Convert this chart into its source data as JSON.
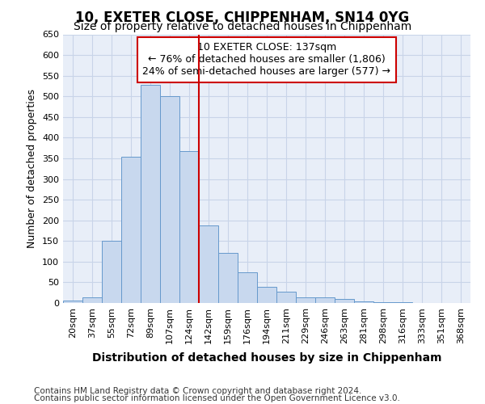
{
  "title": "10, EXETER CLOSE, CHIPPENHAM, SN14 0YG",
  "subtitle": "Size of property relative to detached houses in Chippenham",
  "xlabel": "Distribution of detached houses by size in Chippenham",
  "ylabel": "Number of detached properties",
  "categories": [
    "20sqm",
    "37sqm",
    "55sqm",
    "72sqm",
    "89sqm",
    "107sqm",
    "124sqm",
    "142sqm",
    "159sqm",
    "176sqm",
    "194sqm",
    "211sqm",
    "229sqm",
    "246sqm",
    "263sqm",
    "281sqm",
    "298sqm",
    "316sqm",
    "333sqm",
    "351sqm",
    "368sqm"
  ],
  "values": [
    5,
    13,
    150,
    353,
    528,
    501,
    367,
    188,
    122,
    75,
    40,
    27,
    13,
    13,
    10,
    3,
    1,
    1,
    0,
    0,
    0
  ],
  "bar_color": "#c8d8ee",
  "bar_edge_color": "#6699cc",
  "vline_x": 7.0,
  "annotation_text_line1": "10 EXETER CLOSE: 137sqm",
  "annotation_text_line2": "← 76% of detached houses are smaller (1,806)",
  "annotation_text_line3": "24% of semi-detached houses are larger (577) →",
  "annotation_box_color": "#ffffff",
  "annotation_box_edge_color": "#cc0000",
  "vline_color": "#cc0000",
  "grid_color": "#c8d4e8",
  "background_color": "#e8eef8",
  "ylim": [
    0,
    650
  ],
  "yticks": [
    0,
    50,
    100,
    150,
    200,
    250,
    300,
    350,
    400,
    450,
    500,
    550,
    600,
    650
  ],
  "footer_line1": "Contains HM Land Registry data © Crown copyright and database right 2024.",
  "footer_line2": "Contains public sector information licensed under the Open Government Licence v3.0.",
  "title_fontsize": 12,
  "subtitle_fontsize": 10,
  "xlabel_fontsize": 10,
  "ylabel_fontsize": 9,
  "tick_fontsize": 8,
  "annotation_fontsize": 9,
  "footer_fontsize": 7.5
}
